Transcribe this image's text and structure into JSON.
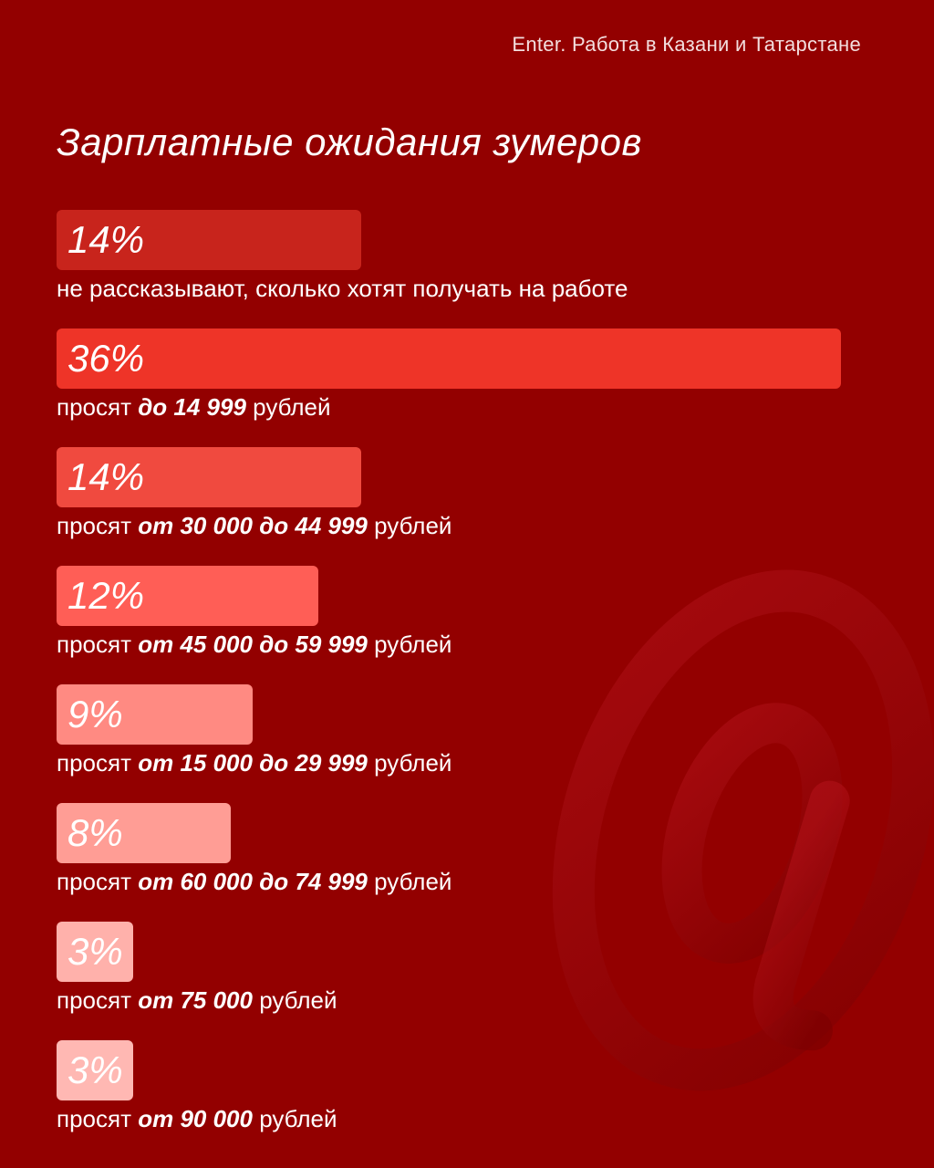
{
  "header": {
    "brand": "Enter. Работа в Казани и Татарстане"
  },
  "chart_data": {
    "type": "bar",
    "orientation": "horizontal",
    "title": "Зарплатные ожидания зумеров",
    "unit": "%",
    "xlim": [
      0,
      36
    ],
    "items": [
      {
        "value": 14,
        "label_display": "14%",
        "prefix": "не рассказывают, сколько хотят получать на работе",
        "bold": "",
        "suffix": "",
        "color": "#c8241c"
      },
      {
        "value": 36,
        "label_display": "36%",
        "prefix": "просят ",
        "bold": "до 14 999",
        "suffix": " рублей",
        "color": "#ee3428"
      },
      {
        "value": 14,
        "label_display": "14%",
        "prefix": "просят ",
        "bold": "от 30 000 до 44 999",
        "suffix": " рублей",
        "color": "#f04a3f"
      },
      {
        "value": 12,
        "label_display": "12%",
        "prefix": "просят ",
        "bold": "от 45 000 до 59 999",
        "suffix": " рублей",
        "color": "#ff5e56"
      },
      {
        "value": 9,
        "label_display": "9%",
        "prefix": "просят ",
        "bold": "от 15 000 до 29 999",
        "suffix": " рублей",
        "color": "#ff8a82"
      },
      {
        "value": 8,
        "label_display": "8%",
        "prefix": "просят ",
        "bold": "от 60 000 до 74 999",
        "suffix": " рублей",
        "color": "#ff9d95"
      },
      {
        "value": 3,
        "label_display": "3%",
        "prefix": "просят ",
        "bold": "от 75 000",
        "suffix": " рублей",
        "color": "#ffb1ab"
      },
      {
        "value": 3,
        "label_display": "3%",
        "prefix": "просят ",
        "bold": "от 90 000",
        "suffix": " рублей",
        "color": "#ffb8b3"
      }
    ]
  }
}
